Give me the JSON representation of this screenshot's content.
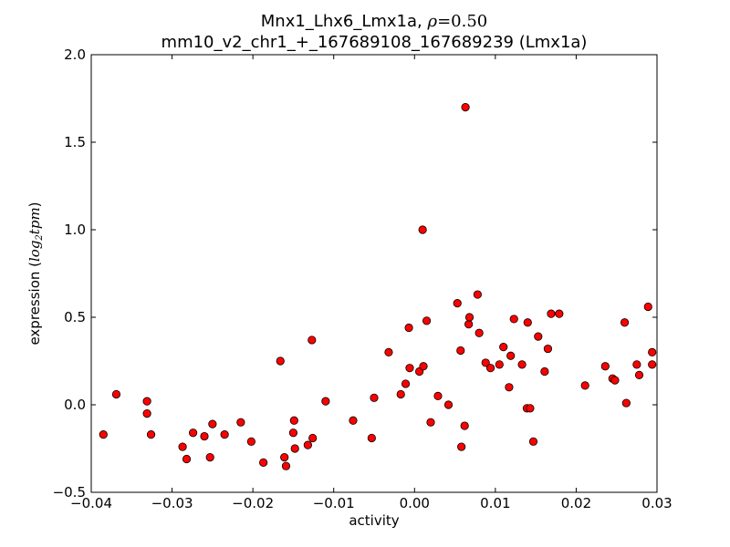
{
  "chart_data": {
    "type": "scatter",
    "title": {
      "prefix": "Mnx1_Lhx6_Lmx1a, ",
      "rho_symbol": "ρ",
      "rho_eq": "=0.50",
      "line2": "mm10_v2_chr1_+_167689108_167689239 (Lmx1a)"
    },
    "xlabel": "activity",
    "ylabel": {
      "prefix": "expression (",
      "unit": "log",
      "unit_sub": "2",
      "unit_rest": "tpm",
      "suffix": ")"
    },
    "xlim": [
      -0.04,
      0.03
    ],
    "ylim": [
      -0.5,
      2.0
    ],
    "xticks": [
      -0.04,
      -0.03,
      -0.02,
      -0.01,
      0.0,
      0.01,
      0.02,
      0.03
    ],
    "xtick_labels": [
      "−0.04",
      "−0.03",
      "−0.02",
      "−0.01",
      "0.00",
      "0.01",
      "0.02",
      "0.03"
    ],
    "yticks": [
      -0.5,
      0.0,
      0.5,
      1.0,
      1.5,
      2.0
    ],
    "ytick_labels": [
      "−0.5",
      "0.0",
      "0.5",
      "1.0",
      "1.5",
      "2.0"
    ],
    "grid": false,
    "marker_color": "#ff0000",
    "marker_edge": "#000000",
    "points": [
      [
        -0.0385,
        -0.17
      ],
      [
        -0.0369,
        0.06
      ],
      [
        -0.0331,
        0.02
      ],
      [
        -0.0331,
        -0.05
      ],
      [
        -0.0326,
        -0.17
      ],
      [
        -0.0287,
        -0.24
      ],
      [
        -0.0282,
        -0.31
      ],
      [
        -0.0274,
        -0.16
      ],
      [
        -0.026,
        -0.18
      ],
      [
        -0.0253,
        -0.3
      ],
      [
        -0.025,
        -0.11
      ],
      [
        -0.0235,
        -0.17
      ],
      [
        -0.0215,
        -0.1
      ],
      [
        -0.0202,
        -0.21
      ],
      [
        -0.0187,
        -0.33
      ],
      [
        -0.0166,
        0.25
      ],
      [
        -0.0161,
        -0.3
      ],
      [
        -0.0159,
        -0.35
      ],
      [
        -0.015,
        -0.16
      ],
      [
        -0.0149,
        -0.09
      ],
      [
        -0.0148,
        -0.25
      ],
      [
        -0.0132,
        -0.23
      ],
      [
        -0.0127,
        0.37
      ],
      [
        -0.0126,
        -0.19
      ],
      [
        -0.011,
        0.02
      ],
      [
        -0.0076,
        -0.09
      ],
      [
        -0.0053,
        -0.19
      ],
      [
        -0.005,
        0.04
      ],
      [
        -0.0032,
        0.3
      ],
      [
        -0.0017,
        0.06
      ],
      [
        -0.0011,
        0.12
      ],
      [
        -0.0007,
        0.44
      ],
      [
        -0.0006,
        0.21
      ],
      [
        0.0006,
        0.19
      ],
      [
        0.001,
        1.0
      ],
      [
        0.0011,
        0.22
      ],
      [
        0.0015,
        0.48
      ],
      [
        0.002,
        -0.1
      ],
      [
        0.0029,
        0.05
      ],
      [
        0.0042,
        0.0
      ],
      [
        0.0053,
        0.58
      ],
      [
        0.0057,
        0.31
      ],
      [
        0.0058,
        -0.24
      ],
      [
        0.0062,
        -0.12
      ],
      [
        0.0063,
        1.7
      ],
      [
        0.0067,
        0.46
      ],
      [
        0.0068,
        0.5
      ],
      [
        0.0078,
        0.63
      ],
      [
        0.008,
        0.41
      ],
      [
        0.0088,
        0.24
      ],
      [
        0.0094,
        0.21
      ],
      [
        0.0105,
        0.23
      ],
      [
        0.011,
        0.33
      ],
      [
        0.0117,
        0.1
      ],
      [
        0.0119,
        0.28
      ],
      [
        0.0123,
        0.49
      ],
      [
        0.0133,
        0.23
      ],
      [
        0.0139,
        -0.02
      ],
      [
        0.014,
        0.47
      ],
      [
        0.0143,
        -0.02
      ],
      [
        0.0147,
        -0.21
      ],
      [
        0.0153,
        0.39
      ],
      [
        0.0161,
        0.19
      ],
      [
        0.0165,
        0.32
      ],
      [
        0.0169,
        0.52
      ],
      [
        0.0179,
        0.52
      ],
      [
        0.0211,
        0.11
      ],
      [
        0.0236,
        0.22
      ],
      [
        0.0245,
        0.15
      ],
      [
        0.0248,
        0.14
      ],
      [
        0.026,
        0.47
      ],
      [
        0.0262,
        0.01
      ],
      [
        0.0275,
        0.23
      ],
      [
        0.0278,
        0.17
      ],
      [
        0.0289,
        0.56
      ],
      [
        0.0294,
        0.3
      ],
      [
        0.0294,
        0.23
      ]
    ]
  }
}
